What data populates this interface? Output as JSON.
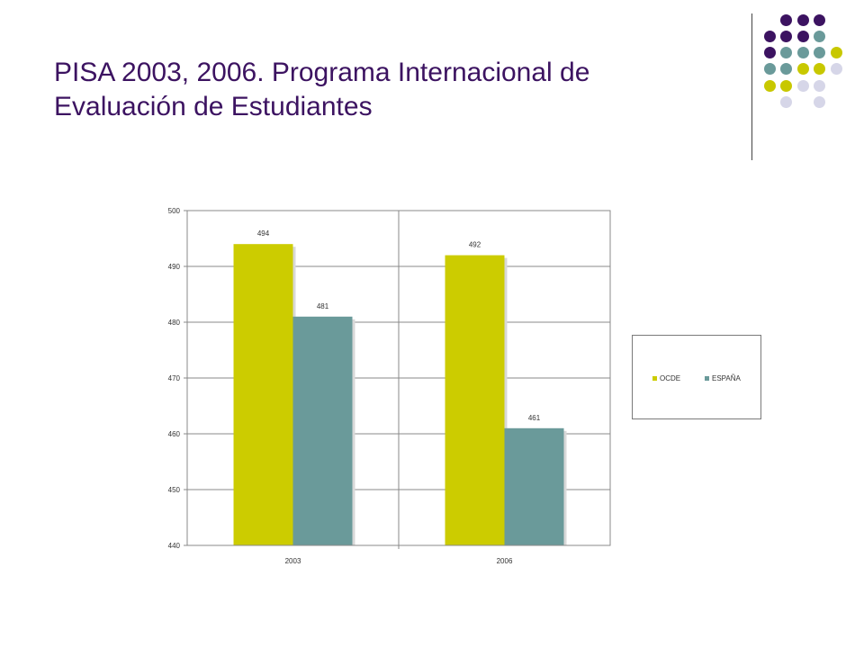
{
  "slide": {
    "title_line1": "PISA 2003, 2006.  Programa Internacional de",
    "title_line2": "Evaluación de Estudiantes"
  },
  "decoration": {
    "dot_colors": [
      "#3c1361",
      "#6a9a9a",
      "#c8c800",
      "#d6d6e8"
    ]
  },
  "chart_data": {
    "type": "bar",
    "categories": [
      "2003",
      "2006"
    ],
    "series": [
      {
        "name": "OCDE",
        "values": [
          494,
          492
        ],
        "color": "#cccc00"
      },
      {
        "name": "ESPAÑA",
        "values": [
          481,
          461
        ],
        "color": "#6a9a9a"
      }
    ],
    "data_labels": [
      [
        "494",
        "492"
      ],
      [
        "481",
        "461"
      ]
    ],
    "ylim": [
      440,
      500
    ],
    "yticks": [
      "440",
      "450",
      "460",
      "470",
      "480",
      "490",
      "500"
    ],
    "grid": true,
    "legend_position": "right",
    "title": "",
    "xlabel": "",
    "ylabel": ""
  }
}
